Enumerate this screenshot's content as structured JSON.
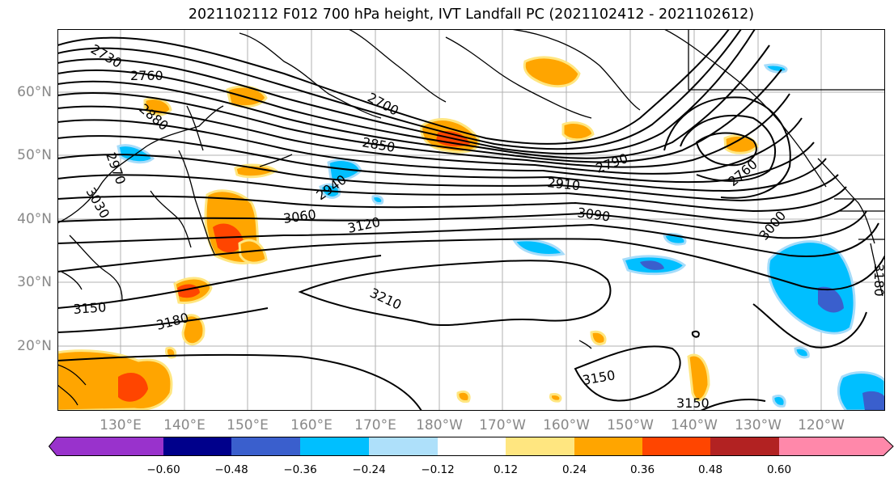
{
  "title": "2021102112 F012 700 hPa height, IVT Landfall PC (2021102412 - 2021102612)",
  "map": {
    "lat_labels": [
      "60°N",
      "50°N",
      "40°N",
      "30°N",
      "20°N"
    ],
    "lon_labels": [
      "130°E",
      "140°E",
      "150°E",
      "160°E",
      "170°E",
      "180°W",
      "170°W",
      "160°W",
      "150°W",
      "140°W",
      "130°W",
      "120°W"
    ],
    "contour_labels": [
      "2730",
      "2760",
      "2880",
      "2970",
      "3030",
      "2700",
      "2850",
      "2940",
      "3060",
      "3120",
      "2910",
      "2790",
      "3090",
      "2760",
      "3000",
      "3150",
      "3180",
      "3210",
      "3150",
      "3150",
      "3180"
    ],
    "colors": {
      "contour": "#000000",
      "land_outline": "#000000",
      "grid": "#b0b0b0",
      "positive_low": "#ffe680",
      "positive_mid": "#ffa500",
      "positive_high": "#ff4500",
      "negative_low": "#a6dcfa",
      "negative_mid": "#00bfff",
      "negative_high": "#3a5fcd"
    }
  },
  "colorbar": {
    "ticks": [
      "−0.60",
      "−0.48",
      "−0.36",
      "−0.24",
      "−0.12",
      "0.12",
      "0.24",
      "0.36",
      "0.48",
      "0.60"
    ],
    "colors": [
      "#9932cc",
      "#00008b",
      "#3a5fcd",
      "#00bfff",
      "#aee0fa",
      "#ffffff",
      "#ffe680",
      "#ffa500",
      "#ff4500",
      "#b22222",
      "#ff88aa"
    ]
  }
}
